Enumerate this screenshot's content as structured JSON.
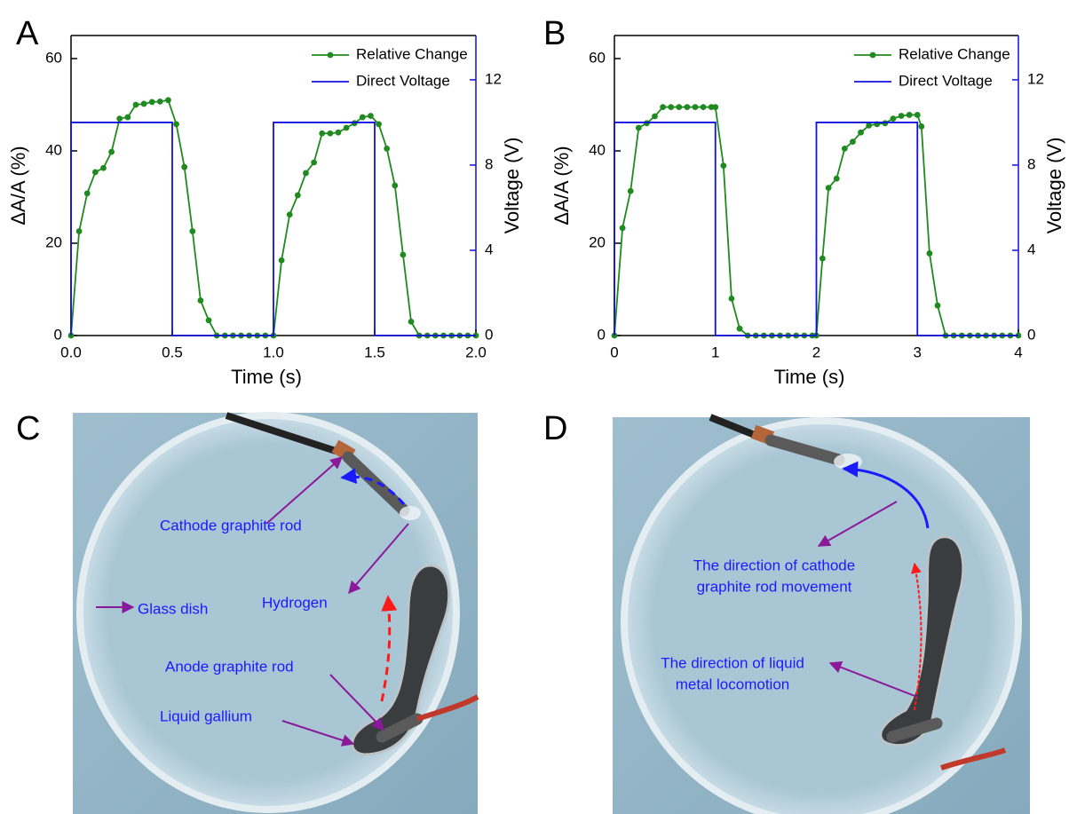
{
  "chart_data": [
    {
      "type": "line",
      "panel_label": "A",
      "x_label": "Time (s)",
      "y_label": "ΔA/A (%)",
      "y2_label": "Voltage (V)",
      "xlim": [
        0,
        2
      ],
      "ylim": [
        0,
        65
      ],
      "y2lim": [
        0,
        14.08
      ],
      "xticks": [
        {
          "value": 0,
          "label": "0.0"
        },
        {
          "value": 0.5,
          "label": "0.5"
        },
        {
          "value": 1,
          "label": "1.0"
        },
        {
          "value": 1.5,
          "label": "1.5"
        },
        {
          "value": 2,
          "label": "2.0"
        }
      ],
      "yticks": [
        0,
        20,
        40,
        60
      ],
      "y2ticks": [
        0,
        4,
        8,
        12
      ],
      "legend": "upper right",
      "series": [
        {
          "name": "Relative Change",
          "color": "#1f8a1f",
          "marker": "circle",
          "x": [
            0,
            0.04,
            0.08,
            0.12,
            0.16,
            0.2,
            0.24,
            0.28,
            0.32,
            0.36,
            0.4,
            0.44,
            0.48,
            0.52,
            0.56,
            0.6,
            0.64,
            0.68,
            0.72,
            0.76,
            0.8,
            0.84,
            0.88,
            0.92,
            0.96,
            1.0,
            1.04,
            1.08,
            1.12,
            1.16,
            1.2,
            1.24,
            1.28,
            1.32,
            1.36,
            1.4,
            1.44,
            1.48,
            1.52,
            1.56,
            1.6,
            1.64,
            1.68,
            1.72,
            1.76,
            1.8,
            1.84,
            1.88,
            1.92,
            1.96,
            2.0
          ],
          "values": [
            0,
            22.6,
            30.8,
            35.4,
            36.3,
            39.8,
            47,
            47.3,
            50,
            50.2,
            50.6,
            50.7,
            51,
            45.8,
            36.5,
            22.6,
            7.6,
            3.3,
            0,
            0,
            0,
            0,
            0,
            0,
            0,
            0,
            16.3,
            26.2,
            30.4,
            35.2,
            37.5,
            43.8,
            43.8,
            44,
            45,
            46,
            47.3,
            47.6,
            45.8,
            40.5,
            32.5,
            17.5,
            3,
            0,
            0,
            0,
            0,
            0,
            0,
            0,
            0
          ]
        },
        {
          "name": "Direct Voltage",
          "color": "#1010e0",
          "axis": "y2",
          "x": [
            0,
            0,
            0.5,
            0.5,
            1,
            1,
            1.5,
            1.5,
            2
          ],
          "values": [
            0,
            10,
            10,
            0,
            0,
            10,
            10,
            0,
            0
          ]
        }
      ]
    },
    {
      "type": "line",
      "panel_label": "B",
      "x_label": "Time (s)",
      "y_label": "ΔA/A (%)",
      "y2_label": "Voltage (V)",
      "xlim": [
        0,
        4
      ],
      "ylim": [
        0,
        65
      ],
      "y2lim": [
        0,
        14.08
      ],
      "xticks": [
        0,
        1,
        2,
        3,
        4
      ],
      "yticks": [
        0,
        20,
        40,
        60
      ],
      "y2ticks": [
        0,
        4,
        8,
        12
      ],
      "legend": "upper right",
      "series": [
        {
          "name": "Relative Change",
          "color": "#1f8a1f",
          "marker": "circle",
          "x": [
            0,
            0.08,
            0.16,
            0.24,
            0.32,
            0.4,
            0.48,
            0.56,
            0.64,
            0.72,
            0.8,
            0.88,
            0.96,
            1.0,
            1.08,
            1.16,
            1.24,
            1.32,
            1.4,
            1.48,
            1.56,
            1.64,
            1.72,
            1.8,
            1.88,
            1.96,
            2.0,
            2.06,
            2.12,
            2.2,
            2.28,
            2.36,
            2.44,
            2.52,
            2.6,
            2.68,
            2.76,
            2.84,
            2.92,
            3.0,
            3.04,
            3.12,
            3.2,
            3.28,
            3.36,
            3.44,
            3.52,
            3.6,
            3.68,
            3.76,
            3.84,
            3.92,
            4.0
          ],
          "values": [
            0,
            23.3,
            31.3,
            45,
            46,
            47.5,
            49.5,
            49.5,
            49.5,
            49.5,
            49.5,
            49.5,
            49.5,
            49.5,
            36.8,
            8,
            1.5,
            0,
            0,
            0,
            0,
            0,
            0,
            0,
            0,
            0,
            0,
            16.7,
            32,
            34,
            40.5,
            42,
            44,
            45.5,
            45.8,
            46,
            47,
            47.6,
            47.8,
            47.8,
            45.3,
            17.8,
            6.5,
            0,
            0,
            0,
            0,
            0,
            0,
            0,
            0,
            0,
            0
          ]
        },
        {
          "name": "Direct Voltage",
          "color": "#1010e0",
          "axis": "y2",
          "x": [
            0,
            0,
            1,
            1,
            2,
            2,
            3,
            3,
            4
          ],
          "values": [
            0,
            10,
            10,
            0,
            0,
            10,
            10,
            0,
            0
          ]
        }
      ]
    }
  ],
  "photos": [
    {
      "panel_label": "C",
      "annotations": [
        {
          "lines": [
            "Cathode graphite rod"
          ]
        },
        {
          "lines": [
            "Glass dish"
          ]
        },
        {
          "lines": [
            "Hydrogen"
          ]
        },
        {
          "lines": [
            "Anode graphite rod"
          ]
        },
        {
          "lines": [
            "Liquid gallium"
          ]
        }
      ]
    },
    {
      "panel_label": "D",
      "annotations": [
        {
          "lines": [
            "The direction of cathode",
            "graphite rod movement"
          ]
        },
        {
          "lines": [
            "The direction of liquid",
            "metal locomotion"
          ]
        }
      ]
    }
  ]
}
